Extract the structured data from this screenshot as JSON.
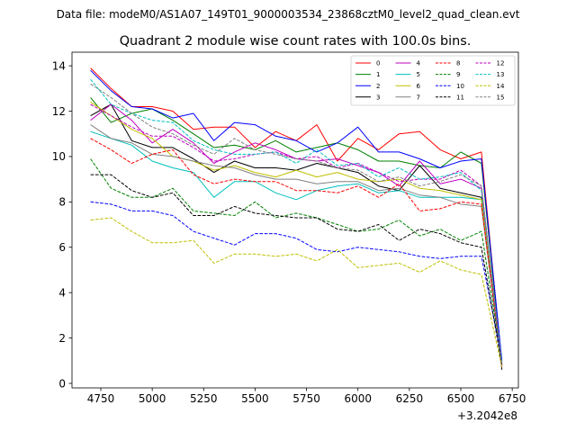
{
  "suptitle": "Data file: modeM0/AS1A07_149T01_9000003534_23868cztM0_level2_quad_clean.evt",
  "chart_data": {
    "type": "line",
    "title": "Quadrant 2 module wise count rates with 100.0s bins.",
    "xlabel": "",
    "ylabel": "",
    "x_offset_label": "+3.2042e8",
    "xlim": [
      4610,
      6780
    ],
    "ylim": [
      -0.2,
      14.6
    ],
    "xticks": [
      4750,
      5000,
      5250,
      5500,
      5750,
      6000,
      6250,
      6500,
      6750
    ],
    "yticks": [
      0,
      2,
      4,
      6,
      8,
      10,
      12,
      14
    ],
    "x": [
      4700,
      4800,
      4900,
      5000,
      5100,
      5200,
      5300,
      5400,
      5500,
      5600,
      5700,
      5800,
      5900,
      6000,
      6100,
      6200,
      6300,
      6400,
      6500,
      6600,
      6700
    ],
    "legend_position": "upper-right",
    "series": [
      {
        "name": "0",
        "color": "#ff0000",
        "dash": "solid",
        "values": [
          13.9,
          13.0,
          12.2,
          12.2,
          12.0,
          11.2,
          11.3,
          11.3,
          10.4,
          11.1,
          10.7,
          11.4,
          9.8,
          10.8,
          10.3,
          11.0,
          11.1,
          10.3,
          9.9,
          10.2,
          0.8
        ]
      },
      {
        "name": "1",
        "color": "#008000",
        "dash": "solid",
        "values": [
          12.6,
          11.5,
          11.9,
          12.1,
          11.6,
          11.0,
          10.4,
          10.5,
          10.3,
          10.7,
          10.2,
          10.4,
          10.6,
          10.3,
          9.8,
          9.8,
          9.6,
          9.5,
          10.2,
          9.7,
          0.8
        ]
      },
      {
        "name": "2",
        "color": "#0000ff",
        "dash": "solid",
        "values": [
          13.8,
          12.9,
          12.2,
          12.1,
          11.7,
          11.9,
          10.7,
          11.5,
          11.4,
          10.9,
          10.7,
          10.2,
          10.6,
          11.3,
          10.2,
          10.2,
          9.9,
          9.5,
          9.8,
          9.9,
          1.0
        ]
      },
      {
        "name": "3",
        "color": "#000000",
        "dash": "solid",
        "values": [
          11.8,
          12.3,
          10.7,
          10.4,
          10.4,
          9.9,
          9.3,
          9.8,
          9.5,
          9.5,
          9.4,
          9.7,
          9.5,
          9.3,
          8.7,
          8.5,
          9.6,
          8.6,
          8.4,
          8.2,
          0.6
        ]
      },
      {
        "name": "4",
        "color": "#bf00bf",
        "dash": "solid",
        "values": [
          11.6,
          12.3,
          11.6,
          10.6,
          11.2,
          10.6,
          9.7,
          10.2,
          10.6,
          10.3,
          9.9,
          9.8,
          9.9,
          9.6,
          9.3,
          8.7,
          9.8,
          8.8,
          9.0,
          8.6,
          0.7
        ]
      },
      {
        "name": "5",
        "color": "#00bfbf",
        "dash": "solid",
        "values": [
          11.1,
          10.8,
          10.5,
          9.8,
          9.5,
          9.3,
          8.2,
          8.9,
          8.9,
          8.4,
          8.1,
          8.5,
          8.7,
          8.8,
          8.4,
          8.5,
          8.2,
          8.2,
          8.2,
          8.1,
          0.9
        ]
      },
      {
        "name": "6",
        "color": "#bfbf00",
        "dash": "solid",
        "values": [
          12.4,
          11.8,
          11.2,
          10.8,
          10.0,
          9.8,
          9.4,
          9.6,
          9.3,
          9.1,
          9.4,
          9.1,
          9.3,
          9.0,
          8.9,
          9.0,
          8.6,
          8.5,
          8.3,
          8.1,
          0.8
        ]
      },
      {
        "name": "7",
        "color": "#808080",
        "dash": "solid",
        "values": [
          11.4,
          10.8,
          10.6,
          10.1,
          10.0,
          9.8,
          9.6,
          9.5,
          9.2,
          9.0,
          9.0,
          8.8,
          8.9,
          8.9,
          8.5,
          8.6,
          8.3,
          8.2,
          7.9,
          7.8,
          0.7
        ]
      },
      {
        "name": "8",
        "color": "#ff0000",
        "dash": "dashed",
        "values": [
          10.8,
          10.3,
          9.7,
          10.1,
          10.3,
          9.2,
          8.8,
          9.0,
          8.9,
          8.9,
          8.5,
          8.5,
          8.4,
          8.7,
          8.2,
          8.8,
          7.6,
          7.7,
          8.0,
          7.9,
          0.8
        ]
      },
      {
        "name": "9",
        "color": "#008000",
        "dash": "dashed",
        "values": [
          9.9,
          8.6,
          8.2,
          8.2,
          8.6,
          7.6,
          7.5,
          7.4,
          8.0,
          7.3,
          7.5,
          7.3,
          7.0,
          6.7,
          6.8,
          7.2,
          6.5,
          6.8,
          6.3,
          6.7,
          0.9
        ]
      },
      {
        "name": "10",
        "color": "#0000ff",
        "dash": "dashed",
        "values": [
          8.0,
          7.9,
          7.6,
          7.6,
          7.4,
          6.7,
          6.4,
          6.1,
          6.6,
          6.6,
          6.4,
          5.9,
          5.8,
          6.0,
          5.9,
          5.8,
          5.6,
          5.5,
          5.6,
          5.6,
          1.1
        ]
      },
      {
        "name": "11",
        "color": "#000000",
        "dash": "dashed",
        "values": [
          9.2,
          9.2,
          8.5,
          8.2,
          8.4,
          7.4,
          7.4,
          7.8,
          7.5,
          7.4,
          7.3,
          7.3,
          6.8,
          6.7,
          7.0,
          6.3,
          6.8,
          6.6,
          6.2,
          6.0,
          0.8
        ]
      },
      {
        "name": "12",
        "color": "#bf00bf",
        "dash": "dashed",
        "values": [
          12.3,
          11.8,
          11.3,
          10.9,
          10.9,
          10.4,
          9.8,
          9.9,
          10.1,
          10.2,
          9.9,
          10.0,
          9.5,
          9.7,
          9.3,
          8.9,
          9.0,
          9.0,
          9.4,
          8.7,
          0.8
        ]
      },
      {
        "name": "13",
        "color": "#00bfbf",
        "dash": "dashed",
        "values": [
          13.4,
          12.3,
          11.9,
          11.6,
          11.5,
          10.7,
          10.3,
          10.1,
          10.1,
          10.2,
          9.7,
          10.3,
          9.6,
          9.7,
          9.1,
          9.5,
          9.0,
          9.1,
          9.3,
          8.5,
          0.9
        ]
      },
      {
        "name": "14",
        "color": "#bfbf00",
        "dash": "dashed",
        "values": [
          7.2,
          7.3,
          6.7,
          6.2,
          6.2,
          6.3,
          5.3,
          5.7,
          5.7,
          5.6,
          5.7,
          5.4,
          5.9,
          5.1,
          5.2,
          5.3,
          4.9,
          5.4,
          5.0,
          4.8,
          0.7
        ]
      },
      {
        "name": "15",
        "color": "#808080",
        "dash": "dashed",
        "values": [
          13.2,
          12.6,
          11.9,
          11.3,
          11.0,
          10.5,
          10.1,
          10.8,
          10.3,
          10.1,
          9.9,
          9.8,
          9.5,
          9.4,
          8.9,
          9.1,
          8.7,
          8.9,
          9.2,
          8.7,
          0.8
        ]
      }
    ]
  }
}
